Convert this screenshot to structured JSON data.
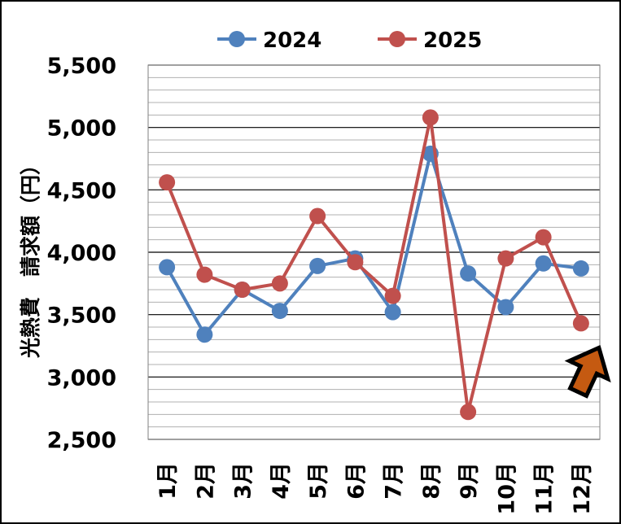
{
  "chart_data": {
    "type": "line",
    "categories": [
      "1月",
      "2月",
      "3月",
      "4月",
      "5月",
      "6月",
      "7月",
      "8月",
      "9月",
      "10月",
      "11月",
      "12月"
    ],
    "series": [
      {
        "name": "2024",
        "color": "#4F81BD",
        "values": [
          3880,
          3340,
          3700,
          3530,
          3890,
          3950,
          3520,
          4790,
          3830,
          3560,
          3910,
          3870
        ]
      },
      {
        "name": "2025",
        "color": "#C0504D",
        "values": [
          4560,
          3820,
          3700,
          3750,
          4290,
          3920,
          3650,
          5080,
          2720,
          3950,
          4120,
          3430
        ]
      }
    ],
    "ylabel": "光熱費　請求額（円）",
    "ylim": [
      2500,
      5500
    ],
    "yticks": [
      "2,500",
      "3,000",
      "3,500",
      "4,000",
      "4,500",
      "5,000",
      "5,500"
    ],
    "ytick_values": [
      2500,
      3000,
      3500,
      4000,
      4500,
      5000,
      5500
    ],
    "grid": true,
    "legend": "top",
    "annotation": {
      "type": "arrow",
      "color": "#C55A11",
      "points_to": "12月"
    }
  }
}
